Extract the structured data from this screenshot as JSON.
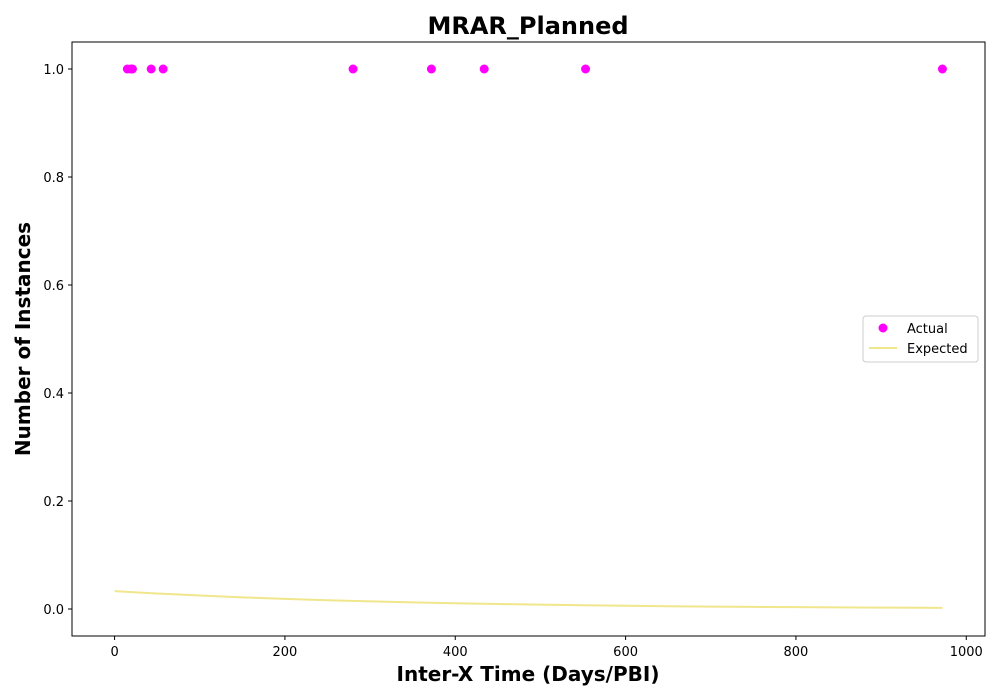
{
  "chart_data": {
    "type": "scatter",
    "title": "MRAR_Planned",
    "xlabel": "Inter-X Time (Days/PBI)",
    "ylabel": "Number of Instances",
    "xlim": [
      -50,
      1022
    ],
    "ylim": [
      -0.05,
      1.05
    ],
    "x_ticks": [
      0,
      200,
      400,
      600,
      800,
      1000
    ],
    "y_ticks": [
      0.0,
      0.2,
      0.4,
      0.6,
      0.8,
      1.0
    ],
    "x_tick_labels": [
      "0",
      "200",
      "400",
      "600",
      "800",
      "1000"
    ],
    "y_tick_labels": [
      "0.0",
      "0.2",
      "0.4",
      "0.6",
      "0.8",
      "1.0"
    ],
    "grid": false,
    "legend_position": "center-right",
    "series": [
      {
        "name": "Actual",
        "kind": "scatter",
        "color": "#ff00ff",
        "x": [
          15,
          19,
          21,
          43,
          57,
          280,
          372,
          434,
          553,
          972
        ],
        "y": [
          1,
          1,
          1,
          1,
          1,
          1,
          1,
          1,
          1,
          1
        ]
      },
      {
        "name": "Expected",
        "kind": "line",
        "color": "#f0e68c",
        "x": [
          0,
          50,
          100,
          150,
          200,
          250,
          300,
          350,
          400,
          450,
          500,
          550,
          600,
          650,
          700,
          750,
          800,
          850,
          900,
          950,
          972
        ],
        "y": [
          0.033,
          0.0287,
          0.0249,
          0.0216,
          0.0187,
          0.0162,
          0.0141,
          0.0122,
          0.0106,
          0.0092,
          0.008,
          0.0069,
          0.006,
          0.0052,
          0.0045,
          0.0039,
          0.0034,
          0.003,
          0.0026,
          0.0022,
          0.0021
        ]
      }
    ]
  }
}
